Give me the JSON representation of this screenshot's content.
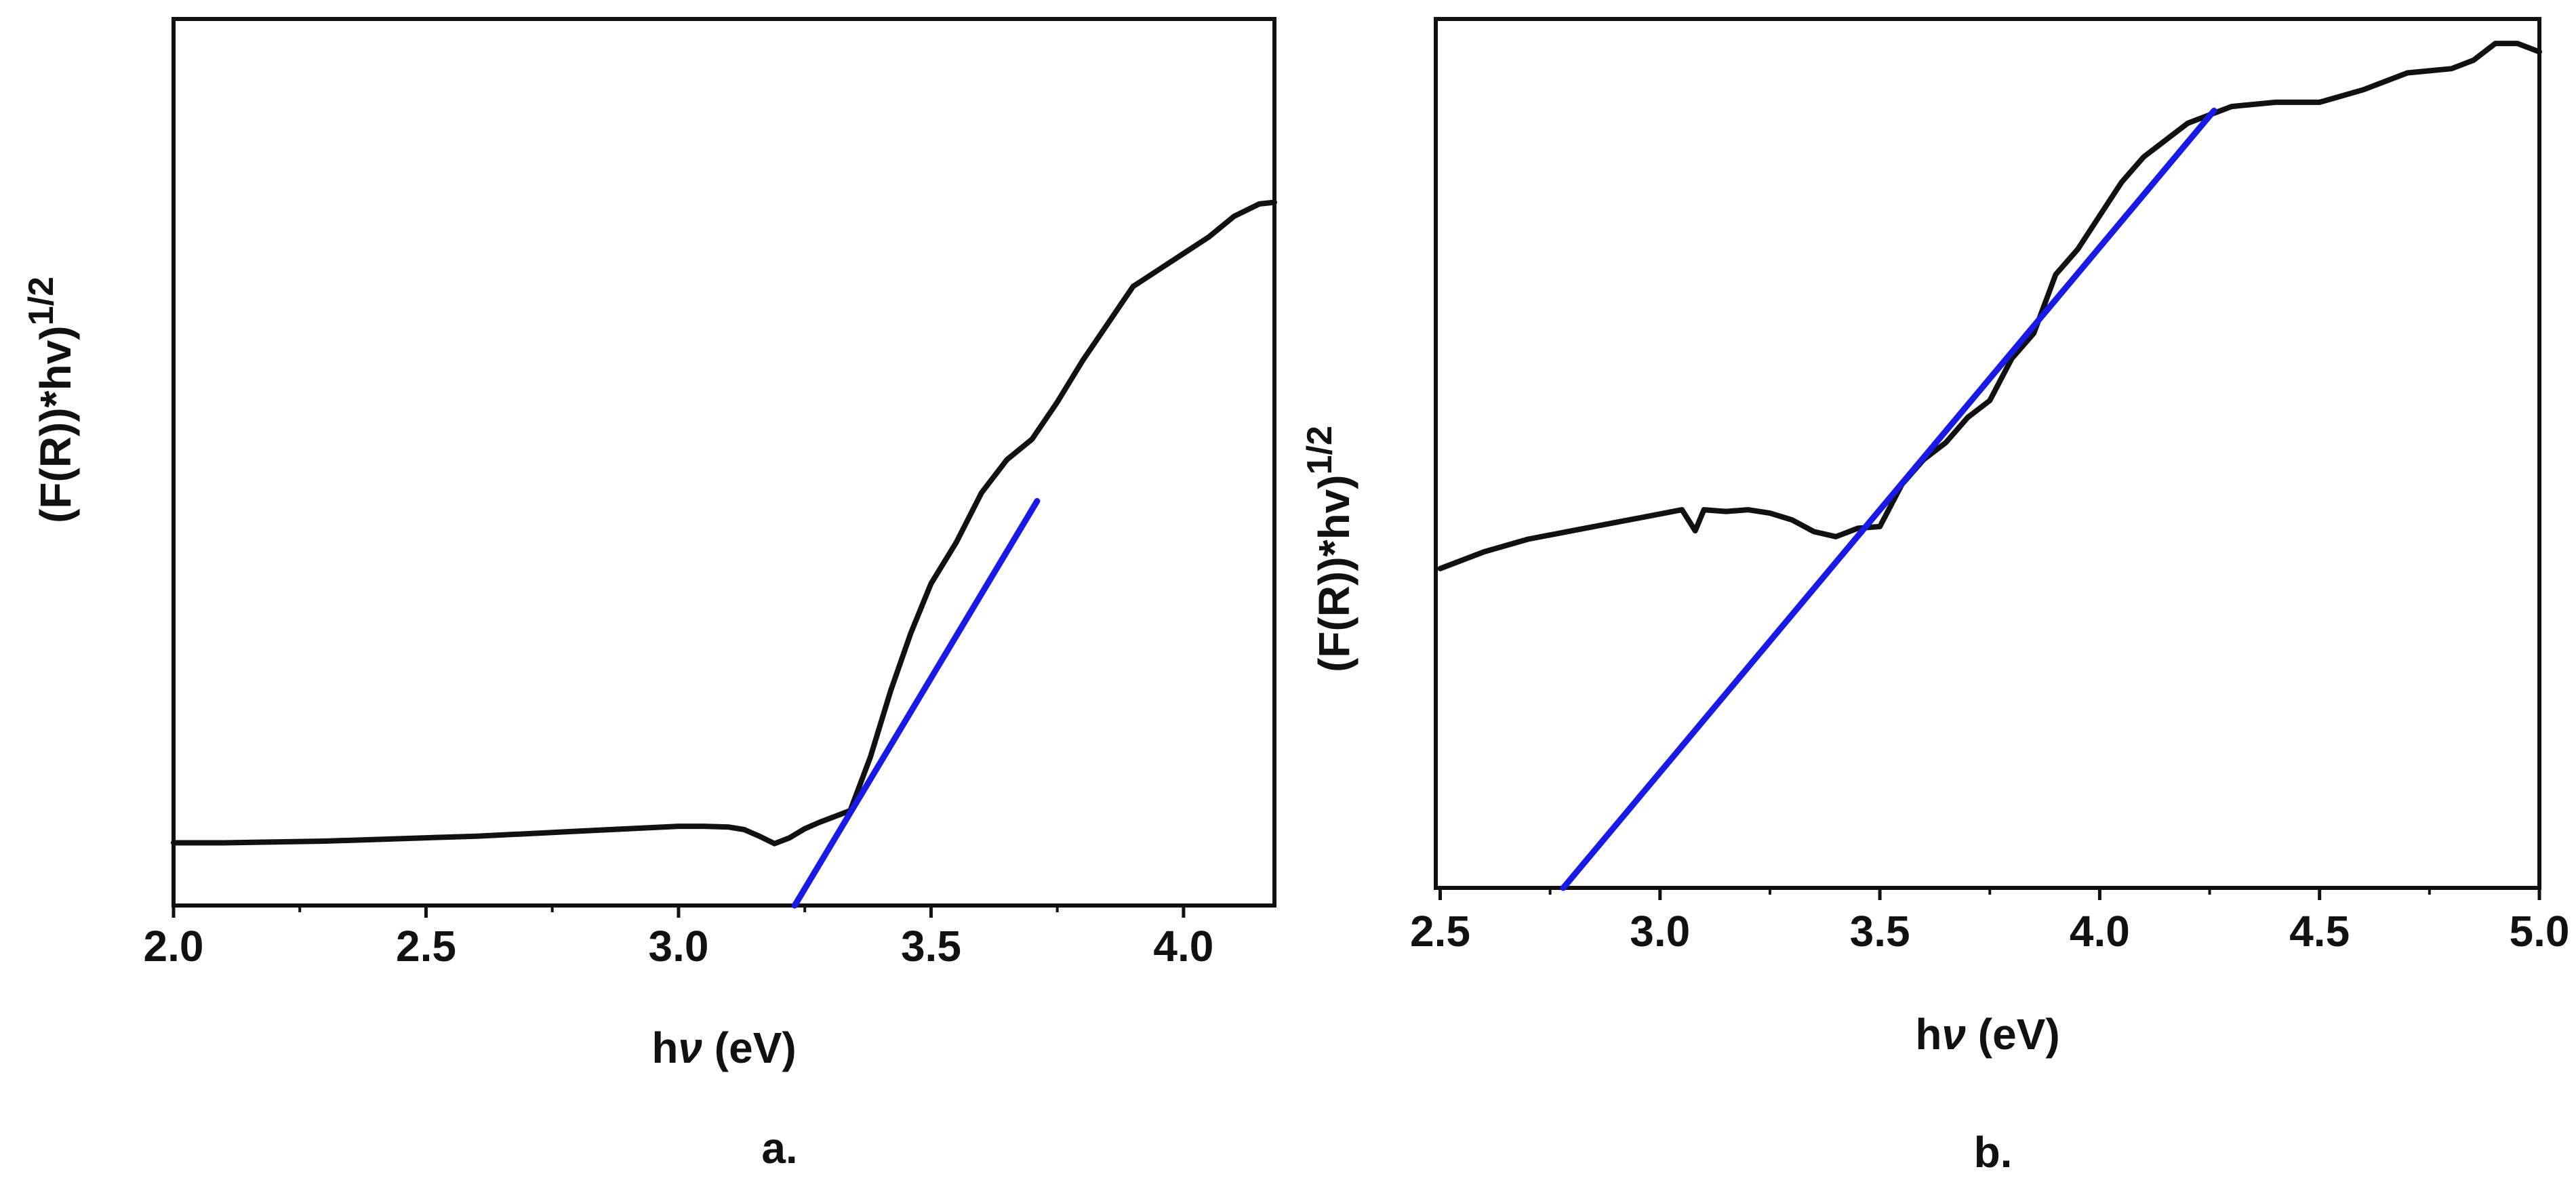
{
  "figure": {
    "panel_labels": [
      "a.",
      "b."
    ]
  },
  "colors": {
    "data": "#111111",
    "fit": "#1a1ae6",
    "frame": "#111111"
  },
  "chart_data": [
    {
      "type": "line",
      "id": "a",
      "panel_label": "a.",
      "xlabel": "hν (eV)",
      "xlabel_main": "h",
      "xlabel_nu": "ν",
      "xlabel_unit": " (eV)",
      "ylabel": "(F(R))*hv)^1/2",
      "ylabel_main": "(F(R))*hv)",
      "ylabel_exp": "1/2",
      "xlim": [
        2.0,
        4.18
      ],
      "ylim": [
        0,
        1
      ],
      "xticks": [
        2.0,
        2.5,
        3.0,
        3.5,
        4.0
      ],
      "xtick_labels": [
        "2.0",
        "2.5",
        "3.0",
        "3.5",
        "4.0"
      ],
      "minor_xticks": [
        2.25,
        2.75,
        3.25,
        3.75
      ],
      "y_ticks_shown": false,
      "series": [
        {
          "name": "data",
          "color": "#111111",
          "x": [
            2.0,
            2.1,
            2.2,
            2.3,
            2.4,
            2.5,
            2.6,
            2.7,
            2.8,
            2.9,
            3.0,
            3.05,
            3.1,
            3.13,
            3.16,
            3.19,
            3.22,
            3.25,
            3.28,
            3.31,
            3.34,
            3.38,
            3.42,
            3.46,
            3.5,
            3.55,
            3.6,
            3.65,
            3.7,
            3.75,
            3.8,
            3.85,
            3.9,
            3.95,
            4.0,
            4.05,
            4.1,
            4.15,
            4.18
          ],
          "y": [
            0.076,
            0.076,
            0.077,
            0.078,
            0.08,
            0.082,
            0.084,
            0.087,
            0.09,
            0.093,
            0.096,
            0.096,
            0.095,
            0.092,
            0.084,
            0.075,
            0.082,
            0.093,
            0.101,
            0.108,
            0.115,
            0.18,
            0.26,
            0.33,
            0.39,
            0.44,
            0.5,
            0.54,
            0.565,
            0.61,
            0.66,
            0.705,
            0.75,
            0.77,
            0.79,
            0.81,
            0.835,
            0.85,
            0.852
          ]
        },
        {
          "name": "linear fit",
          "color": "#1a1ae6",
          "x": [
            3.23,
            3.71
          ],
          "y": [
            0.0,
            0.49
          ]
        }
      ]
    },
    {
      "type": "line",
      "id": "b",
      "panel_label": "b.",
      "xlabel": "hν (eV)",
      "xlabel_main": "h",
      "xlabel_nu": "ν",
      "xlabel_unit": " (eV)",
      "ylabel": "(F(R))*hv)^1/2",
      "ylabel_main": "(F(R))*hv)",
      "ylabel_exp": "1/2",
      "xlim": [
        2.49,
        5.0
      ],
      "ylim": [
        0,
        1
      ],
      "xticks": [
        2.5,
        3.0,
        3.5,
        4.0,
        4.5,
        5.0
      ],
      "xtick_labels": [
        "2.5",
        "3.0",
        "3.5",
        "4.0",
        "4.5",
        "5.0"
      ],
      "minor_xticks": [
        2.75,
        3.25,
        3.75,
        4.25,
        4.75
      ],
      "y_ticks_shown": false,
      "series": [
        {
          "name": "data",
          "color": "#111111",
          "x": [
            2.5,
            2.6,
            2.7,
            2.8,
            2.9,
            3.0,
            3.05,
            3.08,
            3.1,
            3.15,
            3.2,
            3.25,
            3.3,
            3.35,
            3.4,
            3.45,
            3.5,
            3.55,
            3.6,
            3.65,
            3.7,
            3.75,
            3.8,
            3.85,
            3.9,
            3.95,
            4.0,
            4.05,
            4.1,
            4.15,
            4.2,
            4.25,
            4.3,
            4.4,
            4.5,
            4.6,
            4.7,
            4.8,
            4.85,
            4.9,
            4.95,
            5.0
          ],
          "y": [
            0.38,
            0.4,
            0.415,
            0.425,
            0.435,
            0.445,
            0.45,
            0.425,
            0.45,
            0.448,
            0.45,
            0.446,
            0.438,
            0.424,
            0.418,
            0.428,
            0.43,
            0.48,
            0.51,
            0.53,
            0.56,
            0.58,
            0.63,
            0.66,
            0.73,
            0.76,
            0.8,
            0.84,
            0.87,
            0.89,
            0.91,
            0.92,
            0.93,
            0.935,
            0.935,
            0.95,
            0.97,
            0.975,
            0.985,
            1.005,
            1.005,
            0.995
          ]
        },
        {
          "name": "linear fit",
          "color": "#1a1ae6",
          "x": [
            2.78,
            4.26
          ],
          "y": [
            0.0,
            0.925
          ]
        }
      ]
    }
  ]
}
